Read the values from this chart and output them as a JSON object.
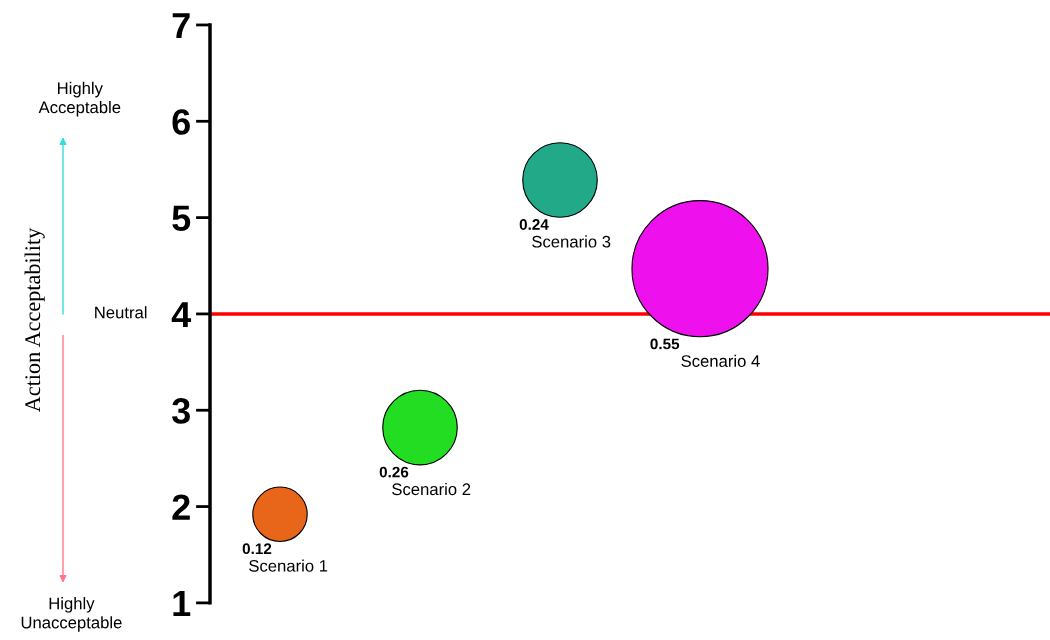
{
  "chart_data": {
    "type": "bubble",
    "categories": [
      null,
      null,
      null,
      null,
      null,
      null
    ],
    "series": [
      {
        "name": "Scenario 1",
        "color": "#e8661a",
        "values": [
          1.92,
          null,
          null,
          null,
          null,
          null
        ],
        "sizes": [
          0.16,
          null,
          null,
          null,
          null,
          null
        ]
      },
      {
        "name": "Scenario 2",
        "color": "#22dd22",
        "values": [
          null,
          2.82,
          null,
          null,
          null,
          null
        ],
        "sizes": [
          null,
          0.3,
          null,
          null,
          null,
          null
        ]
      },
      {
        "name": "Scenario 3",
        "color": "#22aa88",
        "values": [
          null,
          null,
          5.39,
          null,
          null,
          null
        ],
        "sizes": [
          null,
          null,
          0.3,
          null,
          null,
          null
        ]
      },
      {
        "name": "Scenario 4",
        "color": "#ee11ee",
        "values": [
          null,
          null,
          null,
          4.47,
          null,
          null
        ],
        "sizes": [
          null,
          null,
          null,
          1,
          null,
          null
        ]
      }
    ],
    "ylim": [
      1,
      7
    ],
    "yticks": [
      1,
      2,
      3,
      4,
      5,
      6,
      7
    ],
    "ref_lines": [
      {
        "axis": "y",
        "value": 4,
        "color": "#ff0000"
      }
    ],
    "annotations": [
      "Action Acceptability",
      "Highly\nAcceptable",
      "Highly\nUnacceptable",
      "Neutral",
      "0.12",
      "0.26",
      "0.24",
      "0.55"
    ],
    "grid": false,
    "legend": false
  }
}
